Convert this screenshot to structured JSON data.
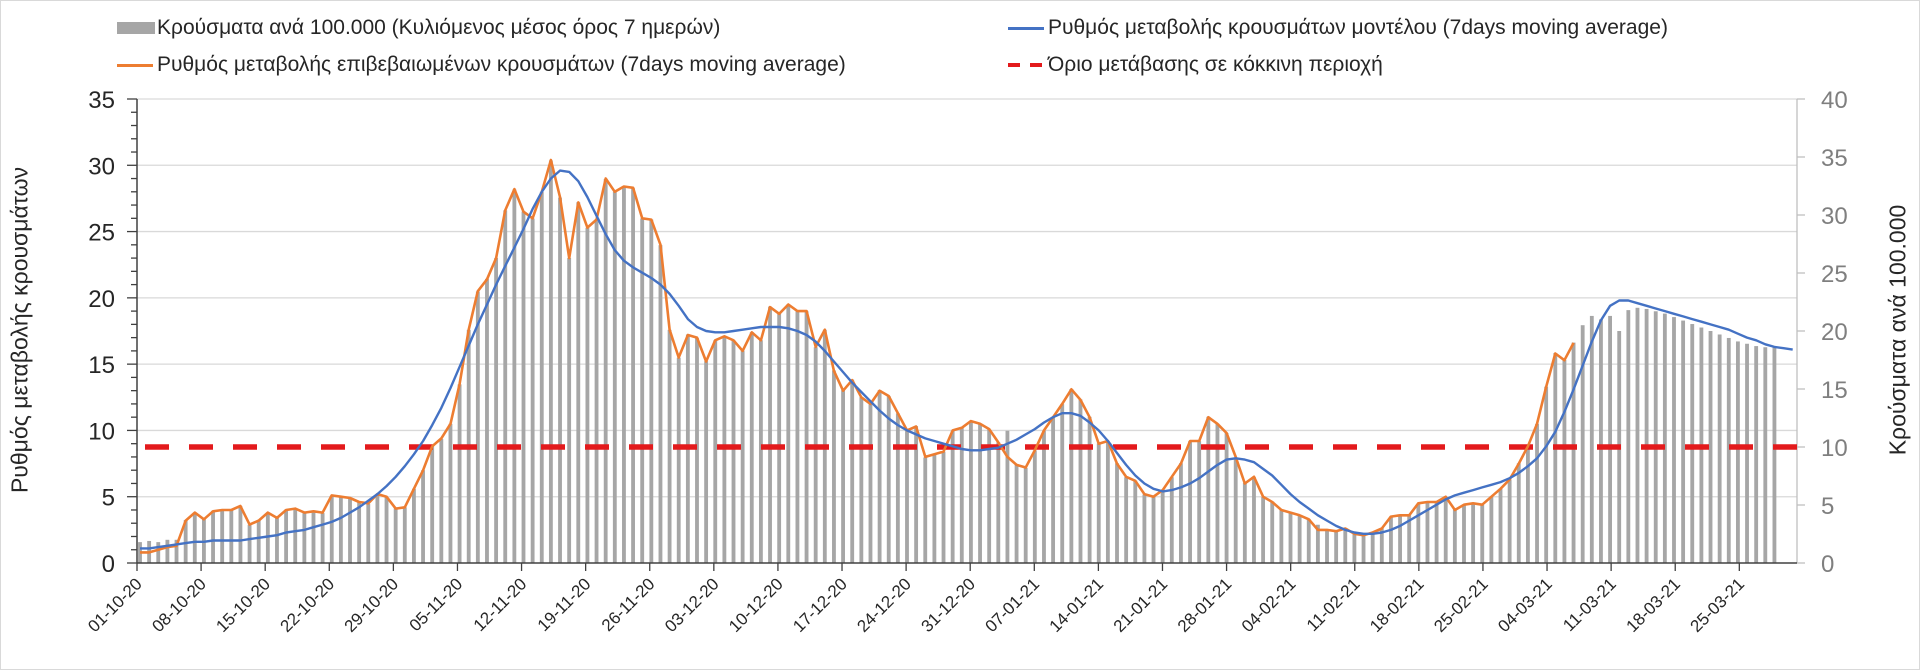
{
  "chart_data": {
    "type": "bar+line",
    "title": "",
    "xlabel": "",
    "ylabel_left": "Ρυθμός μεταβολής κρουσμάτων",
    "ylabel_right": "Κρούσματα ανά 100.000",
    "ylim_left": [
      0,
      35
    ],
    "ylim_right": [
      0,
      40
    ],
    "yticks_left": [
      "0",
      "5",
      "10",
      "15",
      "20",
      "25",
      "30",
      "35"
    ],
    "yticks_right": [
      "0",
      "5",
      "10",
      "15",
      "20",
      "25",
      "30",
      "35",
      "40"
    ],
    "grid": true,
    "legend_position": "top",
    "start_date": "01-10-20",
    "n_days": 182,
    "xtick_labels": [
      "01-10-20",
      "08-10-20",
      "15-10-20",
      "22-10-20",
      "29-10-20",
      "05-11-20",
      "12-11-20",
      "19-11-20",
      "26-11-20",
      "03-12-20",
      "10-12-20",
      "17-12-20",
      "24-12-20",
      "31-12-20",
      "07-01-21",
      "14-01-21",
      "21-01-21",
      "28-01-21",
      "04-02-21",
      "11-02-21",
      "18-02-21",
      "25-02-21",
      "04-03-21",
      "11-03-21",
      "18-03-21",
      "25-03-21"
    ],
    "legend": {
      "bars": "Κρούσματα ανά 100.000 (Κυλιόμενος μέσος όρος 7 ημερών)",
      "model": "Ρυθμός μεταβολής κρουσμάτων μοντέλου (7days moving average)",
      "confirmed": "Ρυθμός μεταβολής επιβεβαιωμένων κρουσμάτων (7days moving average)",
      "threshold": "Όριο μετάβασης σε κόκκινη περιοχή"
    },
    "colors": {
      "bars": "#a6a6a6",
      "model": "#4472c4",
      "confirmed": "#ed7d31",
      "threshold": "#e31a1c",
      "grid": "#d9d9d9"
    },
    "threshold_value_right_axis": 10,
    "series": [
      {
        "name": "Κρούσματα ανά 100.000 (Κυλιόμενος μέσος όρος 7 ημερών)",
        "axis": "right",
        "type": "bar",
        "values": [
          1.8,
          1.9,
          1.8,
          2.0,
          2.0,
          3.7,
          4.3,
          3.8,
          4.5,
          4.6,
          4.6,
          4.9,
          3.3,
          3.7,
          4.3,
          3.9,
          4.6,
          4.7,
          4.3,
          4.5,
          4.3,
          5.8,
          5.7,
          5.6,
          5.3,
          5.1,
          5.9,
          5.7,
          4.7,
          4.8,
          6.4,
          8.0,
          10.1,
          10.7,
          12.0,
          15.4,
          20.1,
          23.4,
          24.5,
          26.3,
          30.4,
          32.2,
          30.3,
          29.7,
          32.0,
          34.7,
          31.5,
          26.3,
          31.1,
          28.9,
          29.6,
          33.1,
          32.0,
          32.5,
          32.3,
          29.7,
          29.6,
          27.4,
          20.1,
          17.7,
          19.7,
          19.4,
          17.4,
          19.2,
          19.5,
          19.2,
          18.3,
          19.9,
          19.2,
          22.1,
          21.5,
          22.3,
          21.7,
          21.7,
          18.6,
          20.1,
          16.6,
          14.9,
          15.8,
          14.3,
          13.7,
          14.9,
          14.4,
          12.9,
          11.4,
          11.8,
          9.1,
          9.4,
          9.6,
          11.4,
          11.7,
          12.2,
          12.0,
          11.5,
          10.4,
          11.4,
          8.5,
          8.2,
          9.7,
          11.4,
          12.6,
          13.7,
          15.0,
          14.1,
          12.6,
          10.3,
          10.5,
          8.6,
          7.4,
          7.1,
          5.9,
          5.7,
          6.3,
          7.4,
          8.6,
          10.5,
          10.5,
          12.6,
          12.0,
          11.2,
          9.1,
          6.9,
          7.4,
          5.7,
          5.3,
          4.6,
          4.4,
          4.1,
          3.8,
          3.3,
          2.9,
          2.7,
          3.0,
          2.5,
          2.4,
          2.6,
          3.0,
          4.0,
          4.1,
          4.1,
          5.1,
          5.3,
          5.3,
          5.7,
          4.6,
          5.0,
          5.1,
          5.0,
          5.7,
          6.4,
          7.2,
          8.6,
          10.1,
          12.0,
          15.2,
          18.1,
          17.5,
          19.0,
          20.5,
          21.3,
          21.0,
          21.3,
          20.0,
          21.8,
          22.0,
          21.9,
          21.7,
          21.5,
          21.2,
          20.9,
          20.6,
          20.3,
          20.0,
          19.7,
          19.4,
          19.1,
          18.9,
          18.7,
          18.6,
          18.6
        ]
      },
      {
        "name": "Ρυθμός μεταβολής κρουσμάτων μοντέλου (7days moving average)",
        "axis": "left",
        "type": "line",
        "values": [
          1.1,
          1.1,
          1.2,
          1.3,
          1.4,
          1.5,
          1.6,
          1.6,
          1.7,
          1.7,
          1.7,
          1.7,
          1.8,
          1.9,
          2.0,
          2.1,
          2.3,
          2.4,
          2.5,
          2.7,
          2.9,
          3.1,
          3.4,
          3.8,
          4.2,
          4.7,
          5.2,
          5.8,
          6.5,
          7.3,
          8.2,
          9.2,
          10.4,
          11.7,
          13.2,
          14.8,
          16.4,
          18.0,
          19.5,
          21.0,
          22.4,
          23.8,
          25.2,
          26.7,
          28.0,
          29.0,
          29.6,
          29.5,
          28.8,
          27.6,
          26.2,
          24.8,
          23.6,
          22.8,
          22.3,
          21.9,
          21.5,
          21.0,
          20.3,
          19.4,
          18.4,
          17.8,
          17.5,
          17.4,
          17.4,
          17.5,
          17.6,
          17.7,
          17.8,
          17.8,
          17.8,
          17.7,
          17.5,
          17.2,
          16.7,
          16.0,
          15.2,
          14.4,
          13.6,
          12.9,
          12.2,
          11.5,
          10.9,
          10.4,
          10.0,
          9.7,
          9.4,
          9.2,
          9.0,
          8.8,
          8.6,
          8.5,
          8.5,
          8.6,
          8.7,
          9.0,
          9.3,
          9.7,
          10.1,
          10.6,
          11.0,
          11.3,
          11.3,
          11.1,
          10.6,
          10.0,
          9.2,
          8.3,
          7.4,
          6.6,
          6.0,
          5.6,
          5.4,
          5.5,
          5.7,
          6.0,
          6.4,
          6.9,
          7.4,
          7.8,
          7.9,
          7.8,
          7.6,
          7.1,
          6.6,
          5.9,
          5.2,
          4.6,
          4.1,
          3.6,
          3.2,
          2.8,
          2.5,
          2.3,
          2.2,
          2.2,
          2.3,
          2.5,
          2.8,
          3.2,
          3.6,
          4.0,
          4.4,
          4.8,
          5.1,
          5.3,
          5.5,
          5.7,
          5.9,
          6.1,
          6.4,
          6.8,
          7.3,
          7.9,
          8.8,
          9.9,
          11.4,
          13.1,
          14.9,
          16.7,
          18.3,
          19.4,
          19.8,
          19.8,
          19.6,
          19.4,
          19.2,
          19.0,
          18.8,
          18.6,
          18.4,
          18.2,
          18.0,
          17.8,
          17.6,
          17.3,
          17.0,
          16.8,
          16.5,
          16.3,
          16.2,
          16.1
        ]
      },
      {
        "name": "Ρυθμός μεταβολής επιβεβαιωμένων κρουσμάτων (7days moving average)",
        "axis": "left",
        "type": "line",
        "values": [
          0.8,
          0.8,
          1.0,
          1.2,
          1.3,
          3.2,
          3.8,
          3.3,
          3.9,
          4.0,
          4.0,
          4.3,
          2.9,
          3.2,
          3.8,
          3.4,
          4.0,
          4.1,
          3.8,
          3.9,
          3.8,
          5.1,
          5.0,
          4.9,
          4.6,
          4.5,
          5.2,
          5.0,
          4.1,
          4.2,
          5.6,
          7.0,
          8.8,
          9.4,
          10.5,
          13.5,
          17.6,
          20.5,
          21.4,
          23.0,
          26.6,
          28.2,
          26.5,
          26.0,
          28.0,
          30.4,
          27.6,
          23.0,
          27.2,
          25.3,
          25.9,
          29.0,
          28.0,
          28.4,
          28.3,
          26.0,
          25.9,
          24.0,
          17.6,
          15.5,
          17.2,
          17.0,
          15.2,
          16.8,
          17.1,
          16.8,
          16.0,
          17.4,
          16.8,
          19.3,
          18.8,
          19.5,
          19.0,
          19.0,
          16.3,
          17.6,
          14.5,
          13.0,
          13.8,
          12.5,
          12.0,
          13.0,
          12.6,
          11.3,
          10.0,
          10.3,
          8.0,
          8.2,
          8.4,
          10.0,
          10.2,
          10.7,
          10.5,
          10.1,
          9.1,
          8.0,
          7.4,
          7.2,
          8.5,
          10.0,
          11.0,
          12.0,
          13.1,
          12.3,
          11.0,
          9.0,
          9.2,
          7.5,
          6.5,
          6.2,
          5.2,
          5.0,
          5.5,
          6.5,
          7.5,
          9.2,
          9.2,
          11.0,
          10.5,
          9.8,
          8.0,
          6.0,
          6.5,
          5.0,
          4.6,
          4.0,
          3.8,
          3.6,
          3.3,
          2.5,
          2.5,
          2.4,
          2.6,
          2.2,
          2.1,
          2.3,
          2.6,
          3.5,
          3.6,
          3.6,
          4.5,
          4.6,
          4.6,
          5.0,
          4.0,
          4.4,
          4.5,
          4.4,
          5.0,
          5.6,
          6.3,
          7.5,
          8.8,
          10.5,
          13.3,
          15.8,
          15.3,
          16.6,
          null,
          null,
          null,
          null,
          null,
          null,
          null,
          null,
          null,
          null,
          null,
          null,
          null,
          null,
          null,
          null,
          null,
          null,
          null,
          null,
          null,
          null,
          null,
          null
        ]
      },
      {
        "name": "Όριο μετάβασης σε κόκκινη περιοχή",
        "axis": "right",
        "type": "line",
        "values_constant": 10
      }
    ]
  }
}
